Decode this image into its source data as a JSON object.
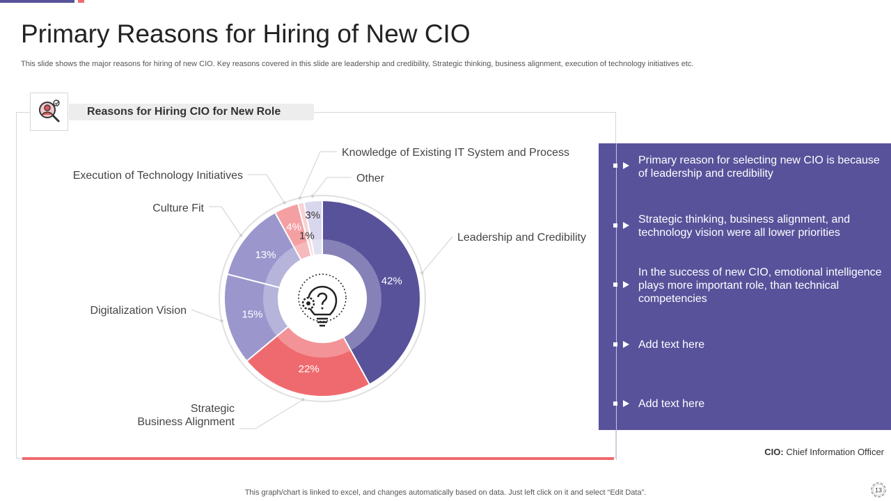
{
  "page": {
    "title": "Primary Reasons for Hiring of New CIO",
    "subtitle": "This slide shows the major reasons for hiring of new CIO.  Key reasons covered in this slide are leadership and credibility, Strategic thinking, business alignment, execution of technology initiatives etc.",
    "page_number": "13",
    "bottom_note": "This graph/chart is linked to excel,  and changes automatically based on data. Just left click on it and select “Edit Data”."
  },
  "chart_heading": "Reasons for Hiring CIO for New Role",
  "chart_data": {
    "type": "pie",
    "title": "Reasons for Hiring CIO for New Role",
    "unit": "%",
    "categories": [
      "Leadership and Credibility",
      "Strategic Business Alignment",
      "Digitalization Vision",
      "Culture Fit",
      "Execution of Technology Initiatives",
      "Knowledge of Existing IT System and Process",
      "Other"
    ],
    "values": [
      42,
      22,
      15,
      13,
      4,
      1,
      3
    ],
    "value_labels": [
      "42%",
      "22%",
      "15%",
      "13%",
      "4%",
      "1%",
      "3%"
    ],
    "colors": [
      "#58529b",
      "#ef6a6f",
      "#9b97cd",
      "#9b97cd",
      "#f4a0a3",
      "#f7d3d4",
      "#d9d7ee"
    ],
    "legend_labels": [
      [
        "Leadership and Credibility"
      ],
      [
        "Strategic",
        "Business Alignment"
      ],
      [
        "Digitalization Vision"
      ],
      [
        "Culture  Fit"
      ],
      [
        "Execution of Technology  Initiatives"
      ],
      [
        "Knowledge of Existing IT  System and Process"
      ],
      [
        "Other"
      ]
    ]
  },
  "panel": {
    "bullets": [
      "Primary reason for selecting new CIO is because of leadership and credibility",
      "Strategic thinking, business alignment, and technology vision were all lower priorities",
      "In the success of new CIO, emotional intelligence plays more important role, than technical competencies",
      "Add text here",
      "Add text here"
    ]
  },
  "footnote": {
    "term": "CIO:",
    "definition": " Chief Information  Officer"
  }
}
